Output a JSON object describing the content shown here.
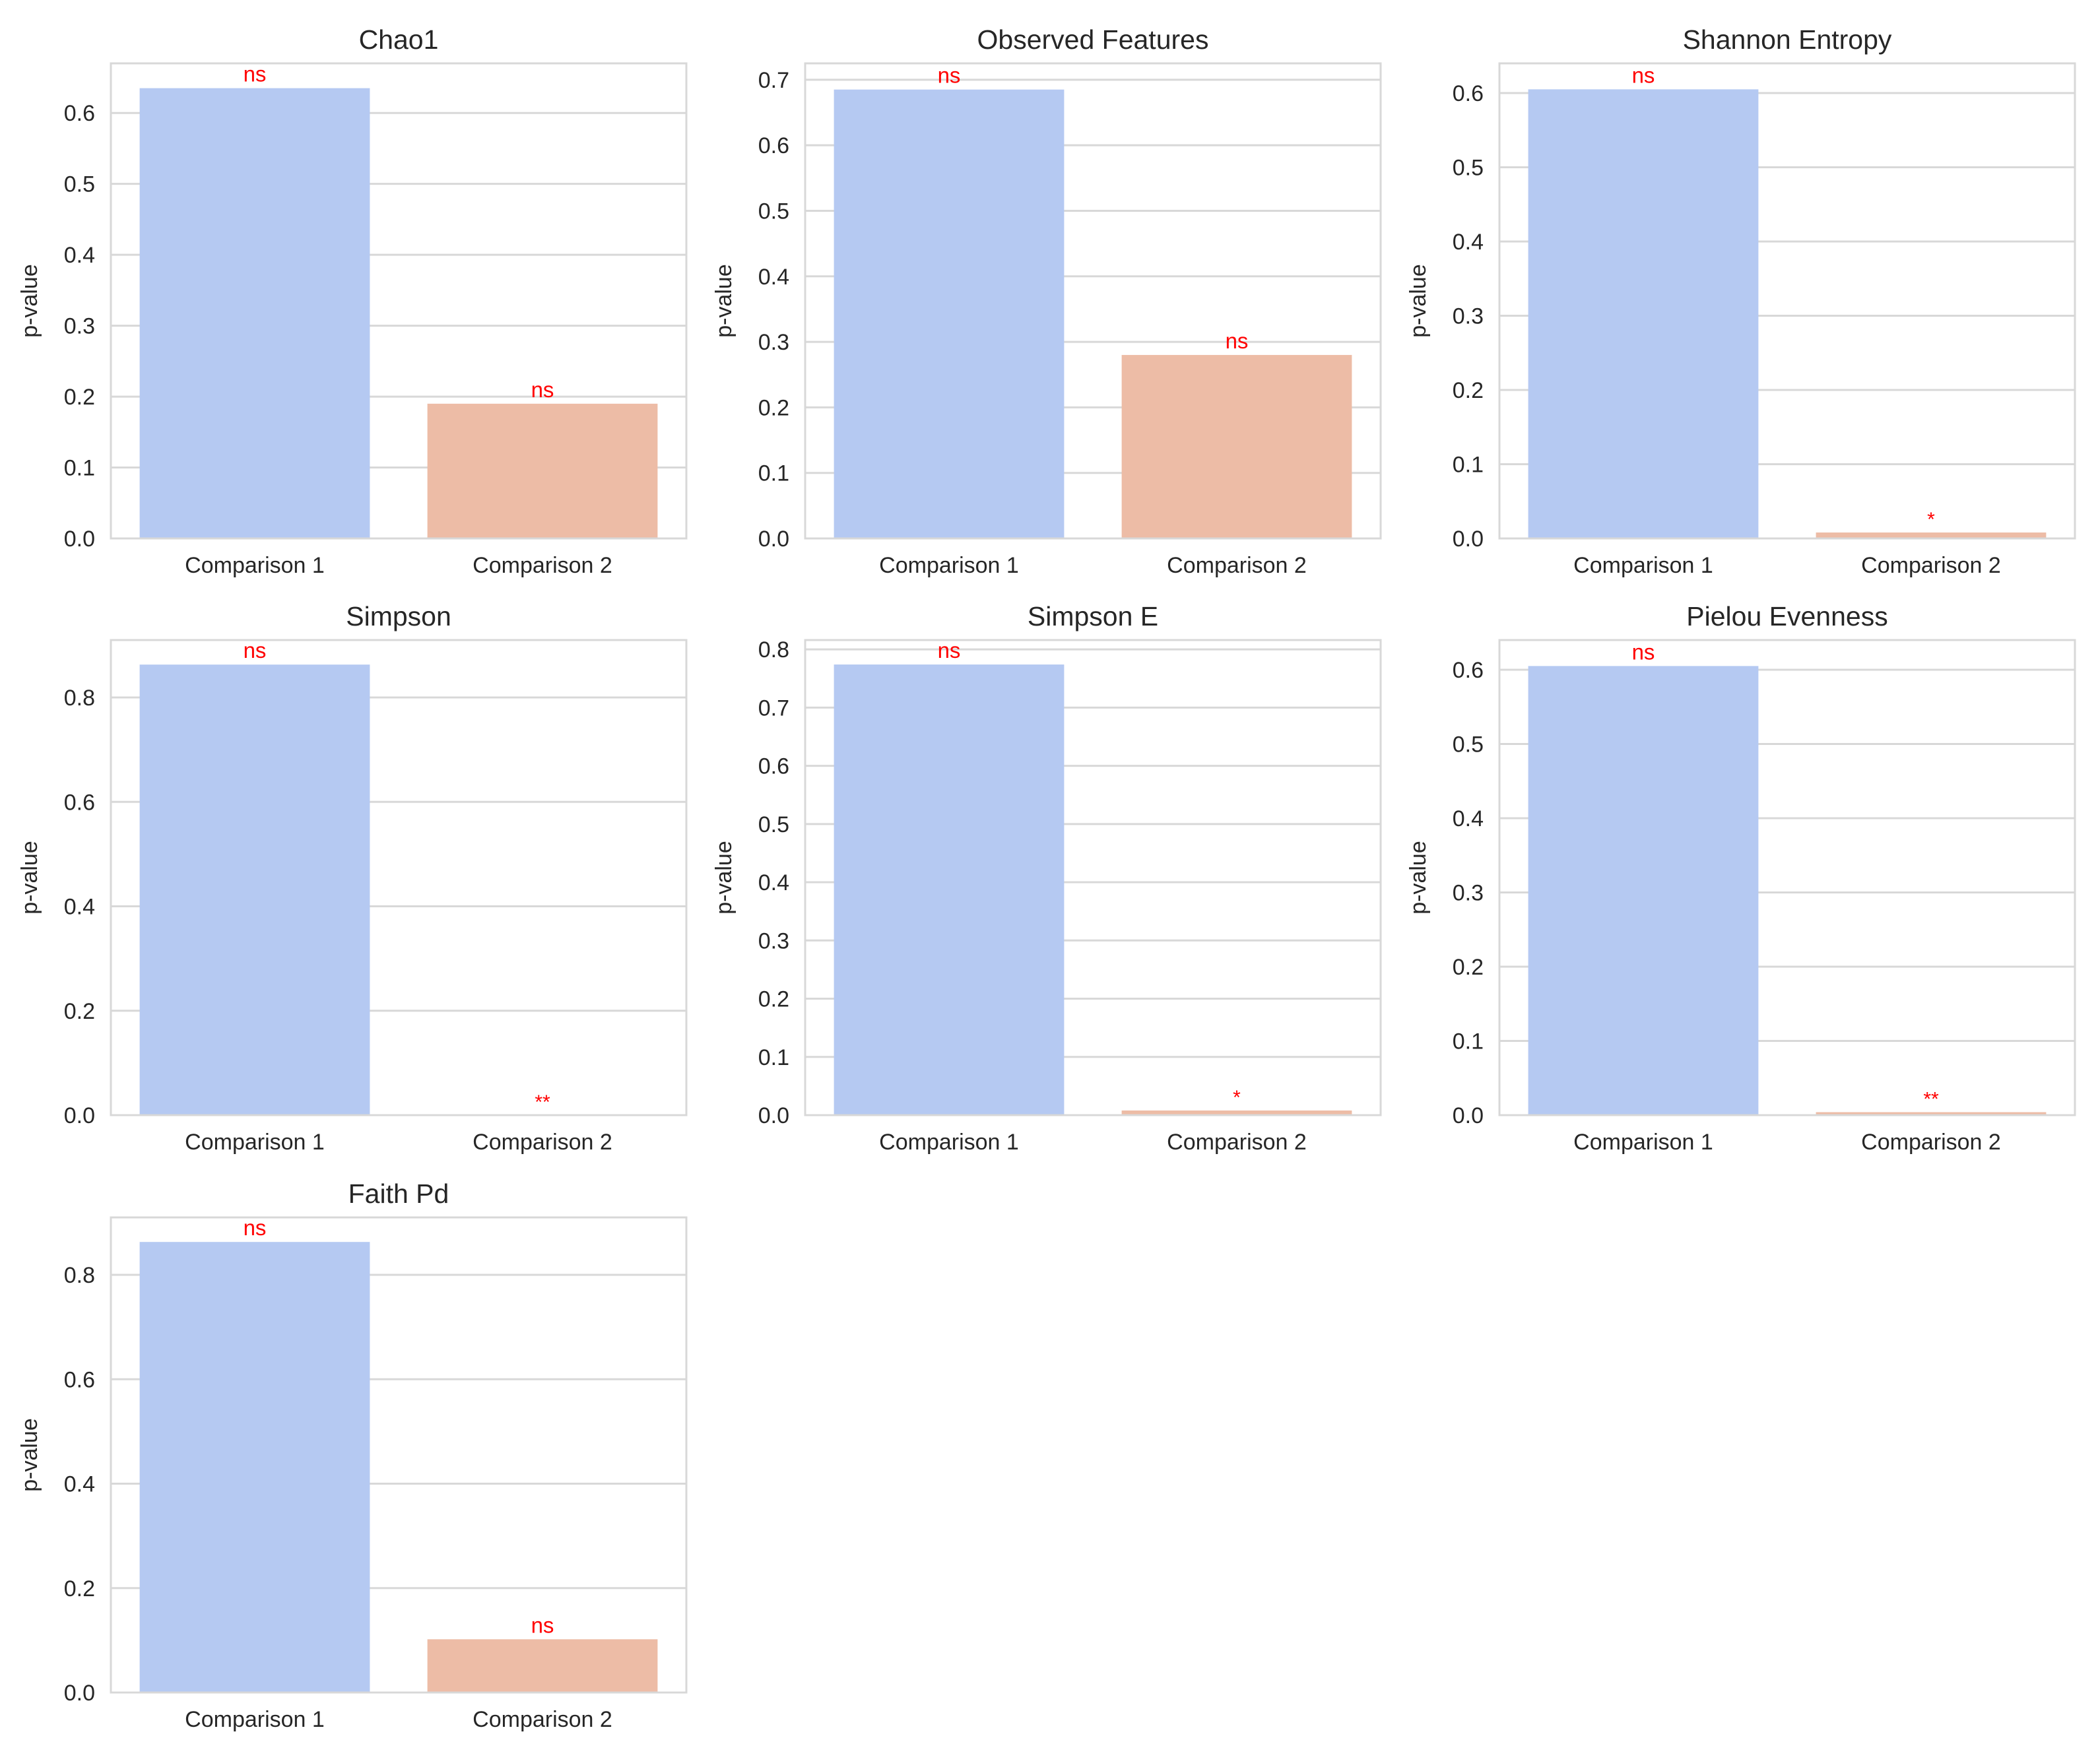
{
  "figure": {
    "background": "#ffffff"
  },
  "colors": {
    "bar_comparison_1": "#b5c9f2",
    "bar_comparison_2": "#edbca6",
    "significance": "#ff0000",
    "grid": "#d8d8d8",
    "frame": "#d8d8d8",
    "text": "#262626"
  },
  "chart_data": [
    {
      "type": "bar",
      "title": "Chao1",
      "xlabel": "",
      "ylabel": "p-value",
      "categories": [
        "Comparison 1",
        "Comparison 2"
      ],
      "values": [
        0.635,
        0.19
      ],
      "annotations": [
        "ns",
        "ns"
      ],
      "ylim": [
        0,
        0.67
      ],
      "yticks": [
        0.0,
        0.1,
        0.2,
        0.3,
        0.4,
        0.5,
        0.6
      ],
      "ytick_labels": [
        "0.0",
        "0.1",
        "0.2",
        "0.3",
        "0.4",
        "0.5",
        "0.6"
      ],
      "grid": true
    },
    {
      "type": "bar",
      "title": "Observed Features",
      "xlabel": "",
      "ylabel": "p-value",
      "categories": [
        "Comparison 1",
        "Comparison 2"
      ],
      "values": [
        0.685,
        0.28
      ],
      "annotations": [
        "ns",
        "ns"
      ],
      "ylim": [
        0,
        0.725
      ],
      "yticks": [
        0.0,
        0.1,
        0.2,
        0.3,
        0.4,
        0.5,
        0.6,
        0.7
      ],
      "ytick_labels": [
        "0.0",
        "0.1",
        "0.2",
        "0.3",
        "0.4",
        "0.5",
        "0.6",
        "0.7"
      ],
      "grid": true
    },
    {
      "type": "bar",
      "title": "Shannon Entropy",
      "xlabel": "",
      "ylabel": "p-value",
      "categories": [
        "Comparison 1",
        "Comparison 2"
      ],
      "values": [
        0.605,
        0.008
      ],
      "annotations": [
        "ns",
        "*"
      ],
      "ylim": [
        0,
        0.64
      ],
      "yticks": [
        0.0,
        0.1,
        0.2,
        0.3,
        0.4,
        0.5,
        0.6
      ],
      "ytick_labels": [
        "0.0",
        "0.1",
        "0.2",
        "0.3",
        "0.4",
        "0.5",
        "0.6"
      ],
      "grid": true
    },
    {
      "type": "bar",
      "title": "Simpson",
      "xlabel": "",
      "ylabel": "p-value",
      "categories": [
        "Comparison 1",
        "Comparison 2"
      ],
      "values": [
        0.863,
        0.0
      ],
      "annotations": [
        "ns",
        "**"
      ],
      "ylim": [
        0,
        0.91
      ],
      "yticks": [
        0.0,
        0.2,
        0.4,
        0.6,
        0.8
      ],
      "ytick_labels": [
        "0.0",
        "0.2",
        "0.4",
        "0.6",
        "0.8"
      ],
      "grid": true
    },
    {
      "type": "bar",
      "title": "Simpson E",
      "xlabel": "",
      "ylabel": "p-value",
      "categories": [
        "Comparison 1",
        "Comparison 2"
      ],
      "values": [
        0.774,
        0.008
      ],
      "annotations": [
        "ns",
        "*"
      ],
      "ylim": [
        0,
        0.816
      ],
      "yticks": [
        0.0,
        0.1,
        0.2,
        0.3,
        0.4,
        0.5,
        0.6,
        0.7,
        0.8
      ],
      "ytick_labels": [
        "0.0",
        "0.1",
        "0.2",
        "0.3",
        "0.4",
        "0.5",
        "0.6",
        "0.7",
        "0.8"
      ],
      "grid": true
    },
    {
      "type": "bar",
      "title": "Pielou Evenness",
      "xlabel": "",
      "ylabel": "p-value",
      "categories": [
        "Comparison 1",
        "Comparison 2"
      ],
      "values": [
        0.605,
        0.004
      ],
      "annotations": [
        "ns",
        "**"
      ],
      "ylim": [
        0,
        0.64
      ],
      "yticks": [
        0.0,
        0.1,
        0.2,
        0.3,
        0.4,
        0.5,
        0.6
      ],
      "ytick_labels": [
        "0.0",
        "0.1",
        "0.2",
        "0.3",
        "0.4",
        "0.5",
        "0.6"
      ],
      "grid": true
    },
    {
      "type": "bar",
      "title": "Faith Pd",
      "xlabel": "",
      "ylabel": "p-value",
      "categories": [
        "Comparison 1",
        "Comparison 2"
      ],
      "values": [
        0.863,
        0.102
      ],
      "annotations": [
        "ns",
        "ns"
      ],
      "ylim": [
        0,
        0.91
      ],
      "yticks": [
        0.0,
        0.2,
        0.4,
        0.6,
        0.8
      ],
      "ytick_labels": [
        "0.0",
        "0.2",
        "0.4",
        "0.6",
        "0.8"
      ],
      "grid": true
    }
  ]
}
